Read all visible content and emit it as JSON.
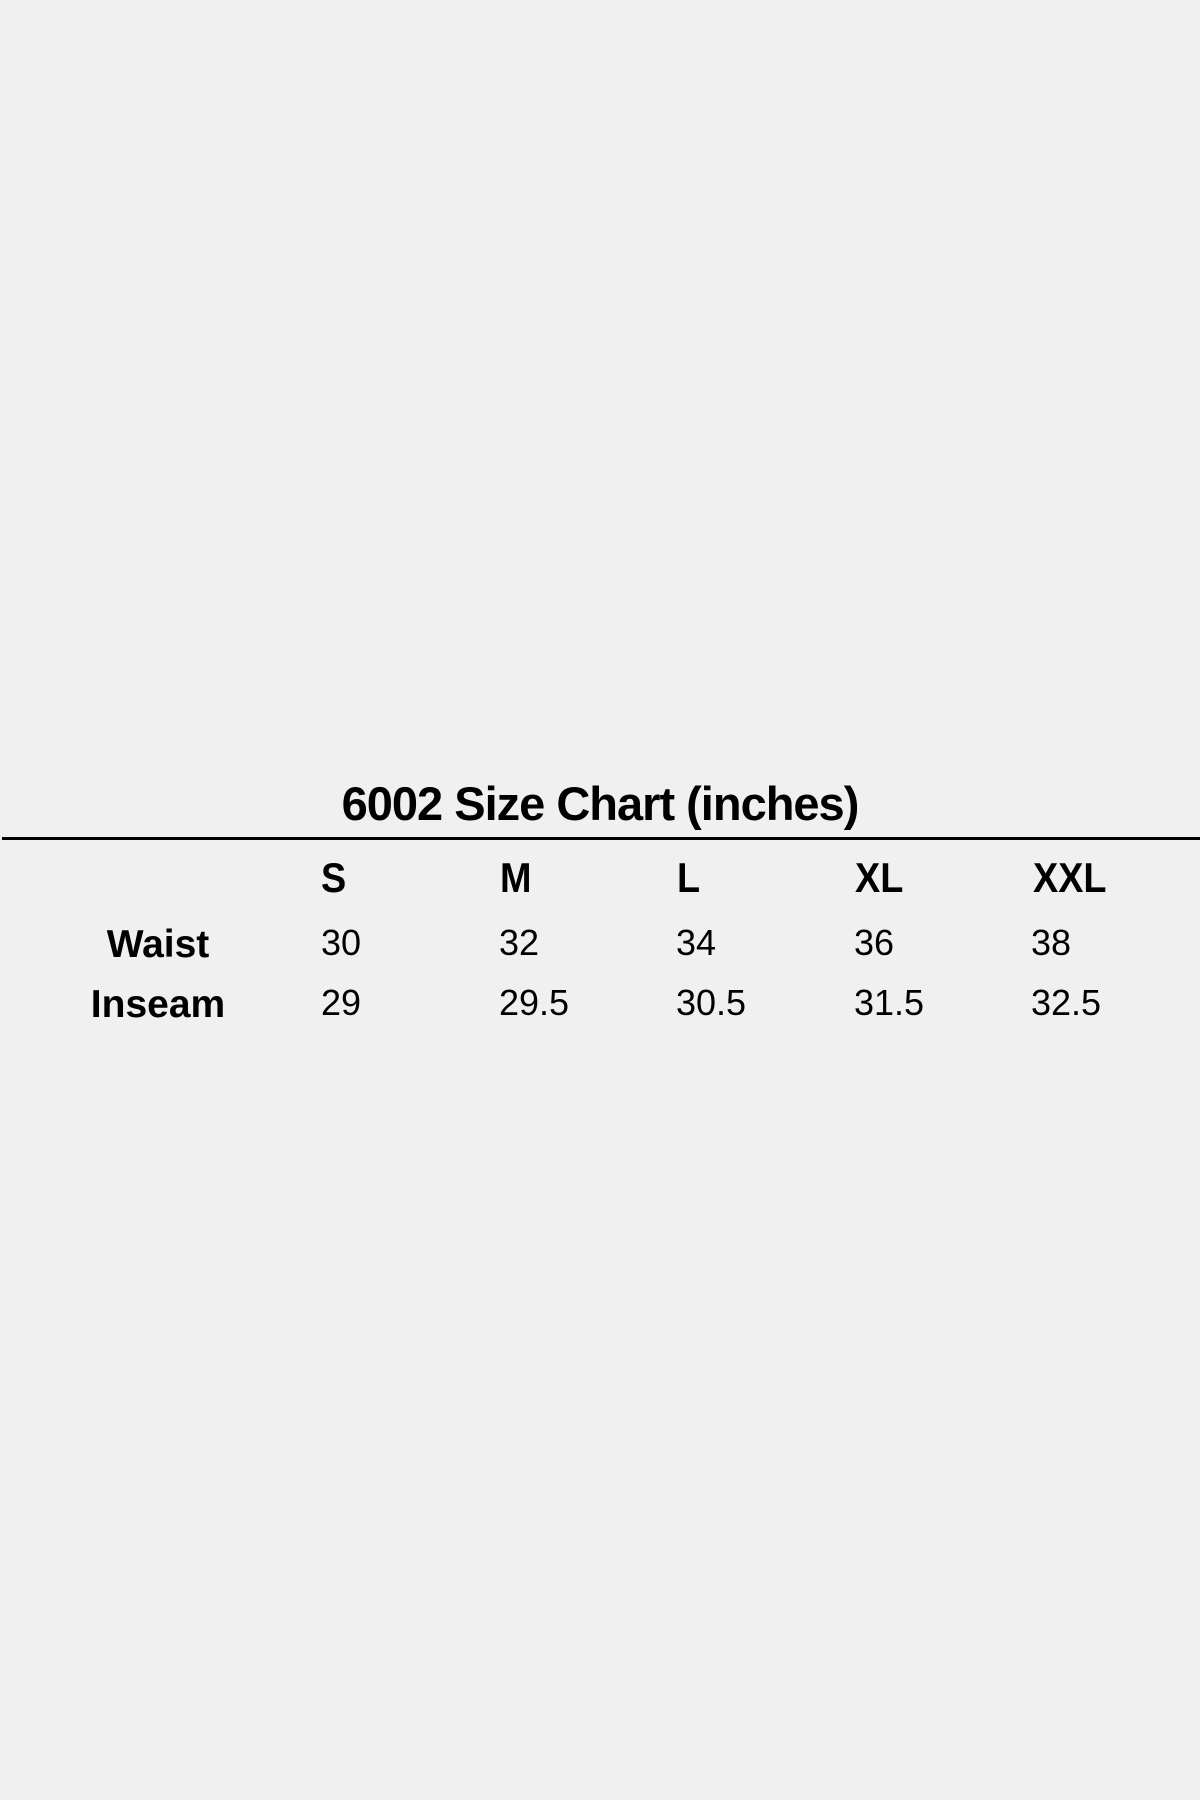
{
  "title": "6002 Size Chart (inches)",
  "table": {
    "columns": [
      "S",
      "M",
      "L",
      "XL",
      "XXL"
    ],
    "rows": [
      {
        "label": "Waist",
        "values": [
          "30",
          "32",
          "34",
          "36",
          "38"
        ]
      },
      {
        "label": "Inseam",
        "values": [
          "29",
          "29.5",
          "30.5",
          "31.5",
          "32.5"
        ]
      }
    ]
  }
}
